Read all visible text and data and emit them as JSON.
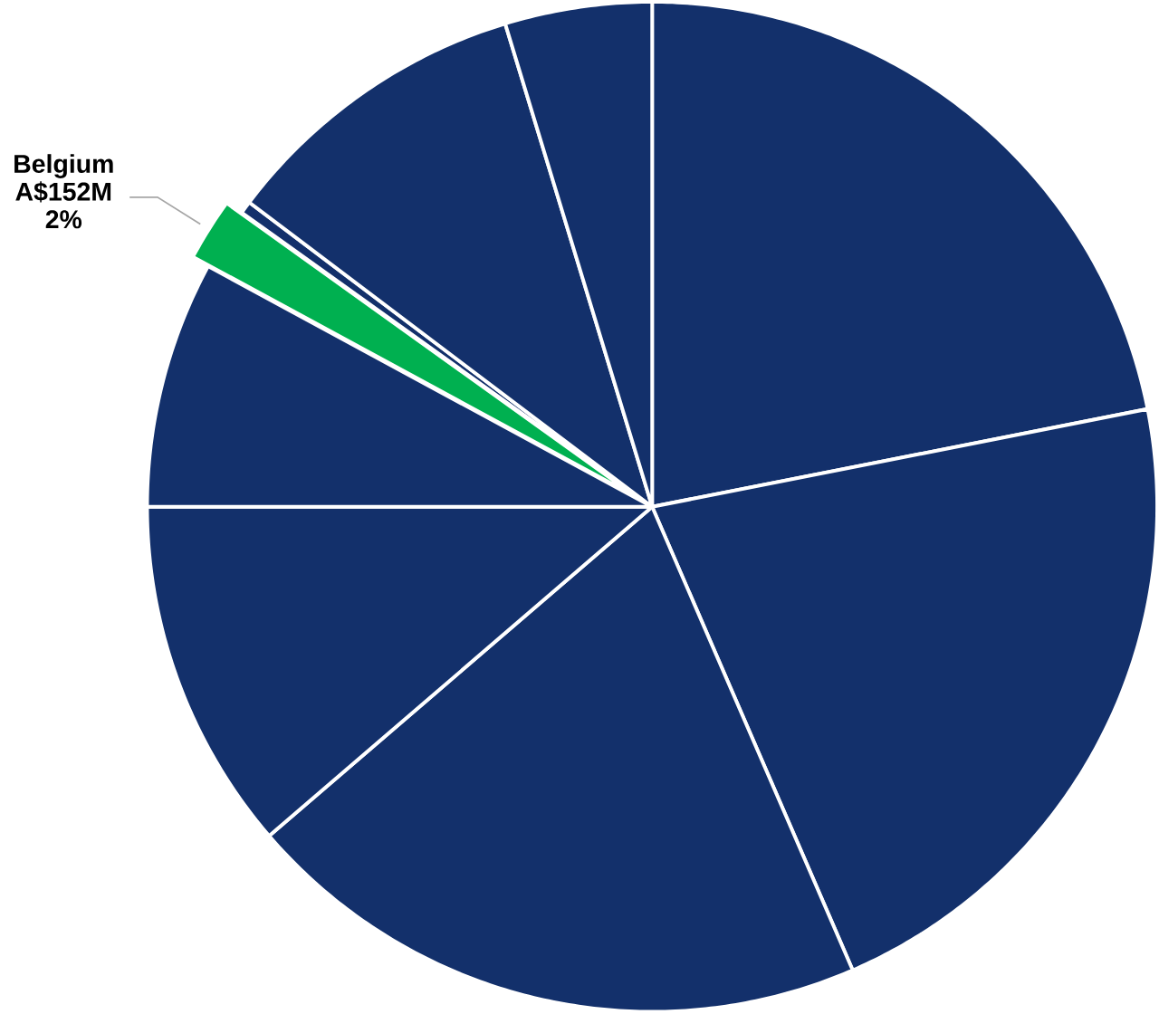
{
  "chart_data": {
    "type": "pie",
    "categories": [
      null,
      null,
      null,
      null,
      null,
      "Belgium",
      null,
      null,
      null
    ],
    "values": [
      21.9,
      21.6,
      20.2,
      11.3,
      7.9,
      2,
      0.4,
      10.0,
      4.7
    ],
    "colors": [
      "#13306b",
      "#13306b",
      "#13306b",
      "#13306b",
      "#13306b",
      "#00b050",
      "#13306b",
      "#13306b",
      "#13306b"
    ],
    "value_labels": [
      null,
      null,
      null,
      null,
      null,
      "A$152M 2%",
      null,
      null,
      null
    ]
  }
}
